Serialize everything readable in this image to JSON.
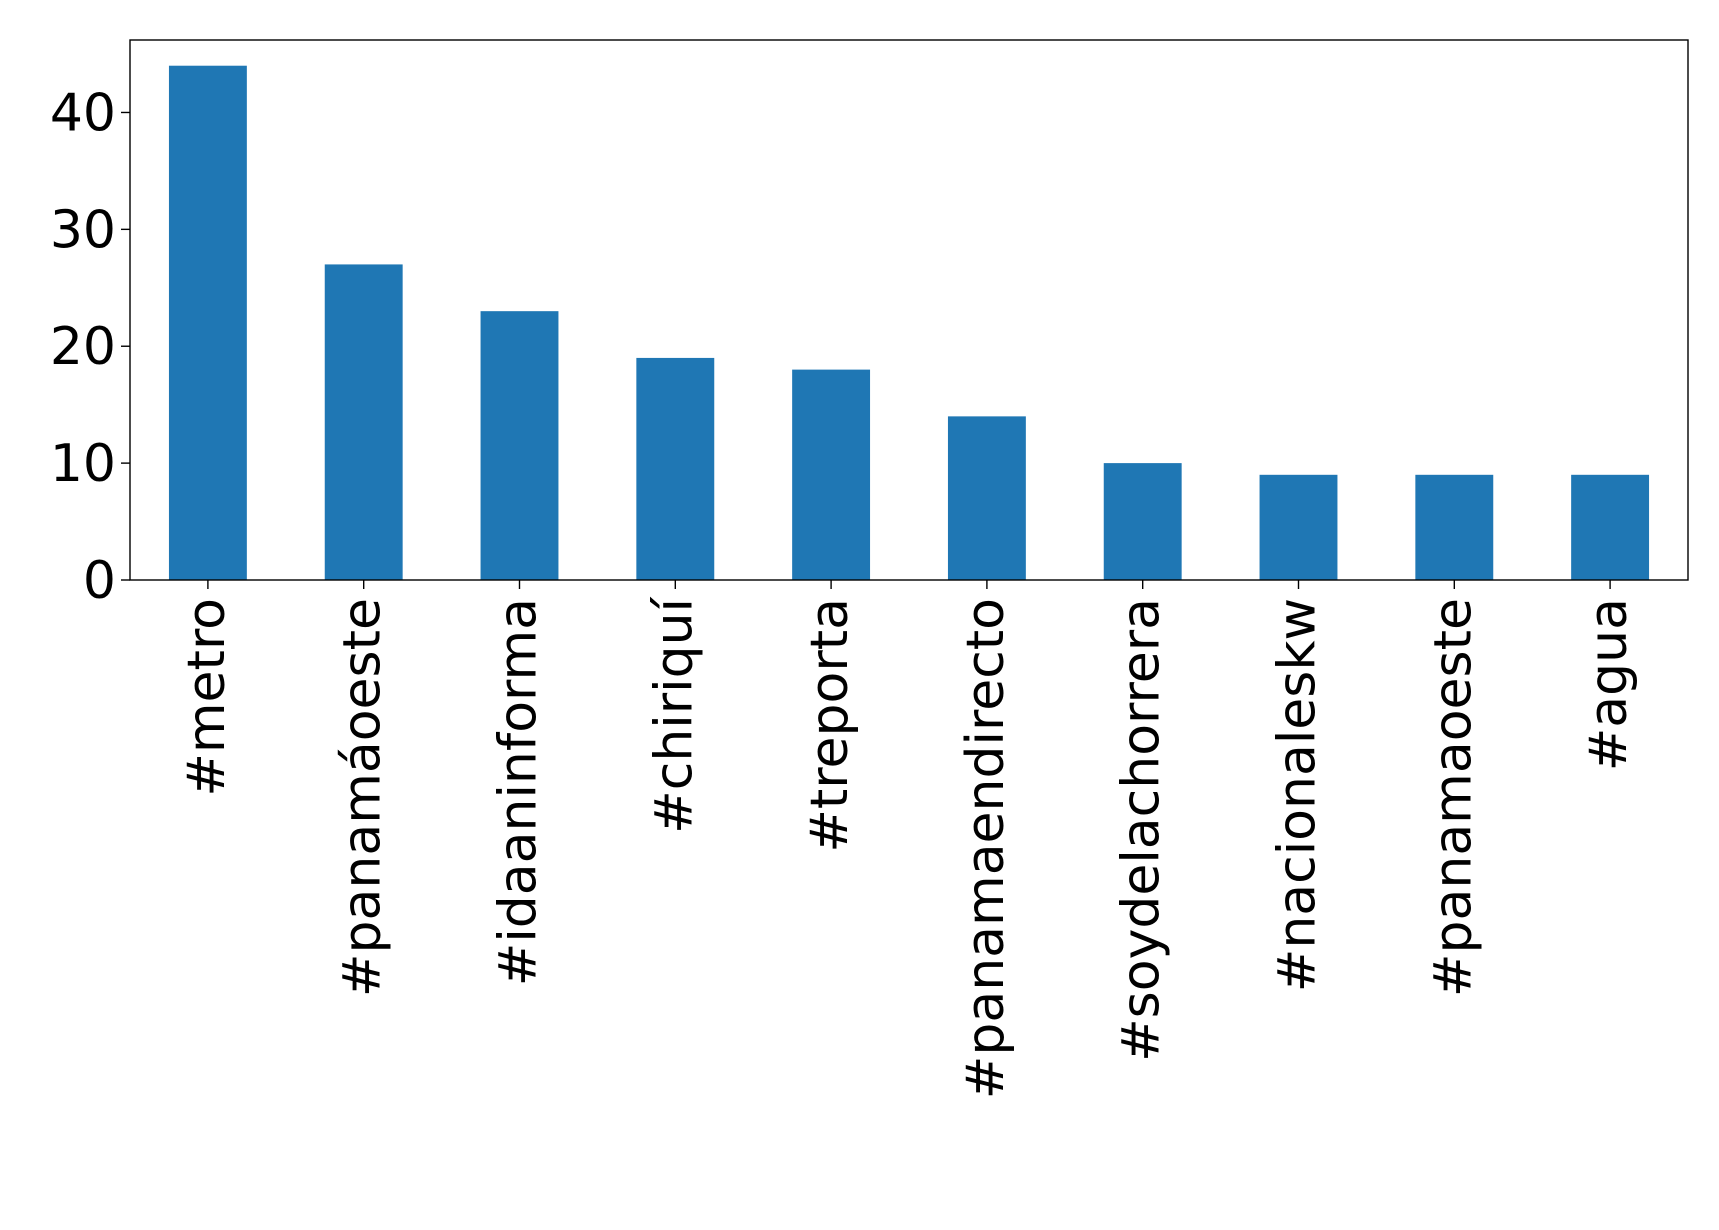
{
  "chart_data": {
    "type": "bar",
    "title": "",
    "xlabel": "",
    "ylabel": "",
    "categories": [
      "#metro",
      "#panamáoeste",
      "#idaaninforma",
      "#chiriquí",
      "#treporta",
      "#panamaendirecto",
      "#soydelachorrera",
      "#nacionaleskw",
      "#panamaoeste",
      "#agua"
    ],
    "values": [
      44,
      27,
      23,
      19,
      18,
      14,
      10,
      9,
      9,
      9
    ],
    "ylim": [
      0,
      46.2
    ],
    "yticks": [
      0,
      10,
      20,
      30,
      40
    ],
    "ytick_labels": [
      "0",
      "10",
      "20",
      "30",
      "40"
    ],
    "grid": false,
    "legend": false,
    "colors": {
      "bar": "#1f77b4",
      "axis": "#000000",
      "background": "#ffffff"
    }
  }
}
